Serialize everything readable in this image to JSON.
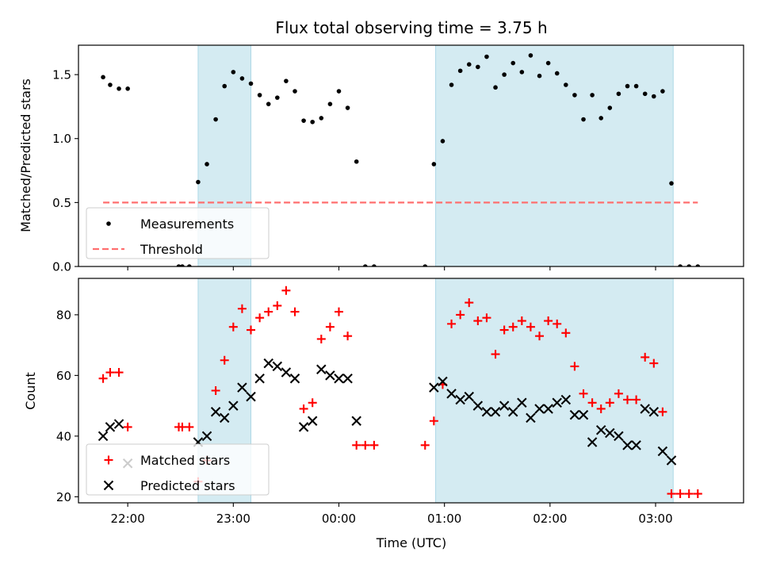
{
  "chart_data": [
    {
      "type": "scatter",
      "title": "Flux total observing time = 3.75 h",
      "xlabel": "",
      "ylabel": "Matched/Predicted stars",
      "xlim": [
        "21:32",
        "03:50"
      ],
      "ylim": [
        0,
        1.73
      ],
      "yticks": [
        0.0,
        0.5,
        1.0,
        1.5
      ],
      "grid": false,
      "legend_position": "lower-left",
      "shaded_intervals": [
        [
          "22:40",
          "23:10"
        ],
        [
          "00:55",
          "03:10"
        ]
      ],
      "series": [
        {
          "name": "Measurements",
          "style": "dot",
          "color": "#000000",
          "points": [
            [
              "21:46",
              1.48
            ],
            [
              "21:50",
              1.42
            ],
            [
              "21:55",
              1.39
            ],
            [
              "22:00",
              1.39
            ],
            [
              "22:29",
              0.0
            ],
            [
              "22:31",
              0.0
            ],
            [
              "22:35",
              0.0
            ],
            [
              "22:40",
              0.66
            ],
            [
              "22:45",
              0.8
            ],
            [
              "22:50",
              1.15
            ],
            [
              "22:55",
              1.41
            ],
            [
              "23:00",
              1.52
            ],
            [
              "23:05",
              1.47
            ],
            [
              "23:10",
              1.43
            ],
            [
              "23:15",
              1.34
            ],
            [
              "23:20",
              1.27
            ],
            [
              "23:25",
              1.32
            ],
            [
              "23:30",
              1.45
            ],
            [
              "23:35",
              1.37
            ],
            [
              "23:40",
              1.14
            ],
            [
              "23:45",
              1.13
            ],
            [
              "23:50",
              1.16
            ],
            [
              "23:55",
              1.27
            ],
            [
              "00:00",
              1.37
            ],
            [
              "00:05",
              1.24
            ],
            [
              "00:10",
              0.82
            ],
            [
              "00:15",
              0.0
            ],
            [
              "00:20",
              0.0
            ],
            [
              "00:49",
              0.0
            ],
            [
              "00:54",
              0.8
            ],
            [
              "00:59",
              0.98
            ],
            [
              "01:04",
              1.42
            ],
            [
              "01:09",
              1.53
            ],
            [
              "01:14",
              1.58
            ],
            [
              "01:19",
              1.56
            ],
            [
              "01:24",
              1.64
            ],
            [
              "01:29",
              1.4
            ],
            [
              "01:34",
              1.5
            ],
            [
              "01:39",
              1.59
            ],
            [
              "01:44",
              1.52
            ],
            [
              "01:49",
              1.65
            ],
            [
              "01:54",
              1.49
            ],
            [
              "01:59",
              1.59
            ],
            [
              "02:04",
              1.51
            ],
            [
              "02:09",
              1.42
            ],
            [
              "02:14",
              1.34
            ],
            [
              "02:19",
              1.15
            ],
            [
              "02:24",
              1.34
            ],
            [
              "02:29",
              1.16
            ],
            [
              "02:34",
              1.24
            ],
            [
              "02:39",
              1.35
            ],
            [
              "02:44",
              1.41
            ],
            [
              "02:49",
              1.41
            ],
            [
              "02:54",
              1.35
            ],
            [
              "02:59",
              1.33
            ],
            [
              "03:04",
              1.37
            ],
            [
              "03:09",
              0.65
            ],
            [
              "03:14",
              0.0
            ],
            [
              "03:19",
              0.0
            ],
            [
              "03:24",
              0.0
            ]
          ]
        },
        {
          "name": "Threshold",
          "style": "dashed-line",
          "color": "#ff6f6f",
          "points": [
            [
              "21:46",
              0.5
            ],
            [
              "03:24",
              0.5
            ]
          ]
        }
      ]
    },
    {
      "type": "scatter",
      "title": "",
      "xlabel": "Time (UTC)",
      "ylabel": "Count",
      "xlim": [
        "21:32",
        "03:50"
      ],
      "ylim": [
        18,
        92
      ],
      "yticks": [
        20,
        40,
        60,
        80
      ],
      "xticks": [
        "22:00",
        "23:00",
        "00:00",
        "01:00",
        "02:00",
        "03:00"
      ],
      "grid": false,
      "legend_position": "lower-left",
      "shaded_intervals": [
        [
          "22:40",
          "23:10"
        ],
        [
          "00:55",
          "03:10"
        ]
      ],
      "series": [
        {
          "name": "Matched stars",
          "style": "plus",
          "color": "#ff0000",
          "points": [
            [
              "21:46",
              59
            ],
            [
              "21:50",
              61
            ],
            [
              "21:55",
              61
            ],
            [
              "22:00",
              43
            ],
            [
              "22:29",
              43
            ],
            [
              "22:31",
              43
            ],
            [
              "22:35",
              43
            ],
            [
              "22:40",
              25
            ],
            [
              "22:45",
              32
            ],
            [
              "22:50",
              55
            ],
            [
              "22:55",
              65
            ],
            [
              "23:00",
              76
            ],
            [
              "23:05",
              82
            ],
            [
              "23:10",
              75
            ],
            [
              "23:15",
              79
            ],
            [
              "23:20",
              81
            ],
            [
              "23:25",
              83
            ],
            [
              "23:30",
              88
            ],
            [
              "23:35",
              81
            ],
            [
              "23:40",
              49
            ],
            [
              "23:45",
              51
            ],
            [
              "23:50",
              72
            ],
            [
              "23:55",
              76
            ],
            [
              "00:00",
              81
            ],
            [
              "00:05",
              73
            ],
            [
              "00:10",
              37
            ],
            [
              "00:15",
              37
            ],
            [
              "00:20",
              37
            ],
            [
              "00:49",
              37
            ],
            [
              "00:54",
              45
            ],
            [
              "00:59",
              57
            ],
            [
              "01:04",
              77
            ],
            [
              "01:09",
              80
            ],
            [
              "01:14",
              84
            ],
            [
              "01:19",
              78
            ],
            [
              "01:24",
              79
            ],
            [
              "01:29",
              67
            ],
            [
              "01:34",
              75
            ],
            [
              "01:39",
              76
            ],
            [
              "01:44",
              78
            ],
            [
              "01:49",
              76
            ],
            [
              "01:54",
              73
            ],
            [
              "01:59",
              78
            ],
            [
              "02:04",
              77
            ],
            [
              "02:09",
              74
            ],
            [
              "02:14",
              63
            ],
            [
              "02:19",
              54
            ],
            [
              "02:24",
              51
            ],
            [
              "02:29",
              49
            ],
            [
              "02:34",
              51
            ],
            [
              "02:39",
              54
            ],
            [
              "02:44",
              52
            ],
            [
              "02:49",
              52
            ],
            [
              "02:54",
              66
            ],
            [
              "02:59",
              64
            ],
            [
              "03:04",
              48
            ],
            [
              "03:09",
              21
            ],
            [
              "03:14",
              21
            ],
            [
              "03:19",
              21
            ],
            [
              "03:24",
              21
            ]
          ]
        },
        {
          "name": "Predicted stars",
          "style": "x",
          "color": "#000000",
          "points": [
            [
              "21:46",
              40
            ],
            [
              "21:50",
              43
            ],
            [
              "21:55",
              44
            ],
            [
              "22:00",
              31
            ],
            [
              "22:40",
              38
            ],
            [
              "22:45",
              40
            ],
            [
              "22:50",
              48
            ],
            [
              "22:55",
              46
            ],
            [
              "23:00",
              50
            ],
            [
              "23:05",
              56
            ],
            [
              "23:10",
              53
            ],
            [
              "23:15",
              59
            ],
            [
              "23:20",
              64
            ],
            [
              "23:25",
              63
            ],
            [
              "23:30",
              61
            ],
            [
              "23:35",
              59
            ],
            [
              "23:40",
              43
            ],
            [
              "23:45",
              45
            ],
            [
              "23:50",
              62
            ],
            [
              "23:55",
              60
            ],
            [
              "00:00",
              59
            ],
            [
              "00:05",
              59
            ],
            [
              "00:10",
              45
            ],
            [
              "00:54",
              56
            ],
            [
              "00:59",
              58
            ],
            [
              "01:04",
              54
            ],
            [
              "01:09",
              52
            ],
            [
              "01:14",
              53
            ],
            [
              "01:19",
              50
            ],
            [
              "01:24",
              48
            ],
            [
              "01:29",
              48
            ],
            [
              "01:34",
              50
            ],
            [
              "01:39",
              48
            ],
            [
              "01:44",
              51
            ],
            [
              "01:49",
              46
            ],
            [
              "01:54",
              49
            ],
            [
              "01:59",
              49
            ],
            [
              "02:04",
              51
            ],
            [
              "02:09",
              52
            ],
            [
              "02:14",
              47
            ],
            [
              "02:19",
              47
            ],
            [
              "02:24",
              38
            ],
            [
              "02:29",
              42
            ],
            [
              "02:34",
              41
            ],
            [
              "02:39",
              40
            ],
            [
              "02:44",
              37
            ],
            [
              "02:49",
              37
            ],
            [
              "02:54",
              49
            ],
            [
              "02:59",
              48
            ],
            [
              "03:04",
              35
            ],
            [
              "03:09",
              32
            ]
          ]
        }
      ]
    }
  ],
  "colors": {
    "shade": "#add8e6",
    "threshold": "#ff6f6f",
    "matched": "#ff0000",
    "predicted": "#000000"
  }
}
